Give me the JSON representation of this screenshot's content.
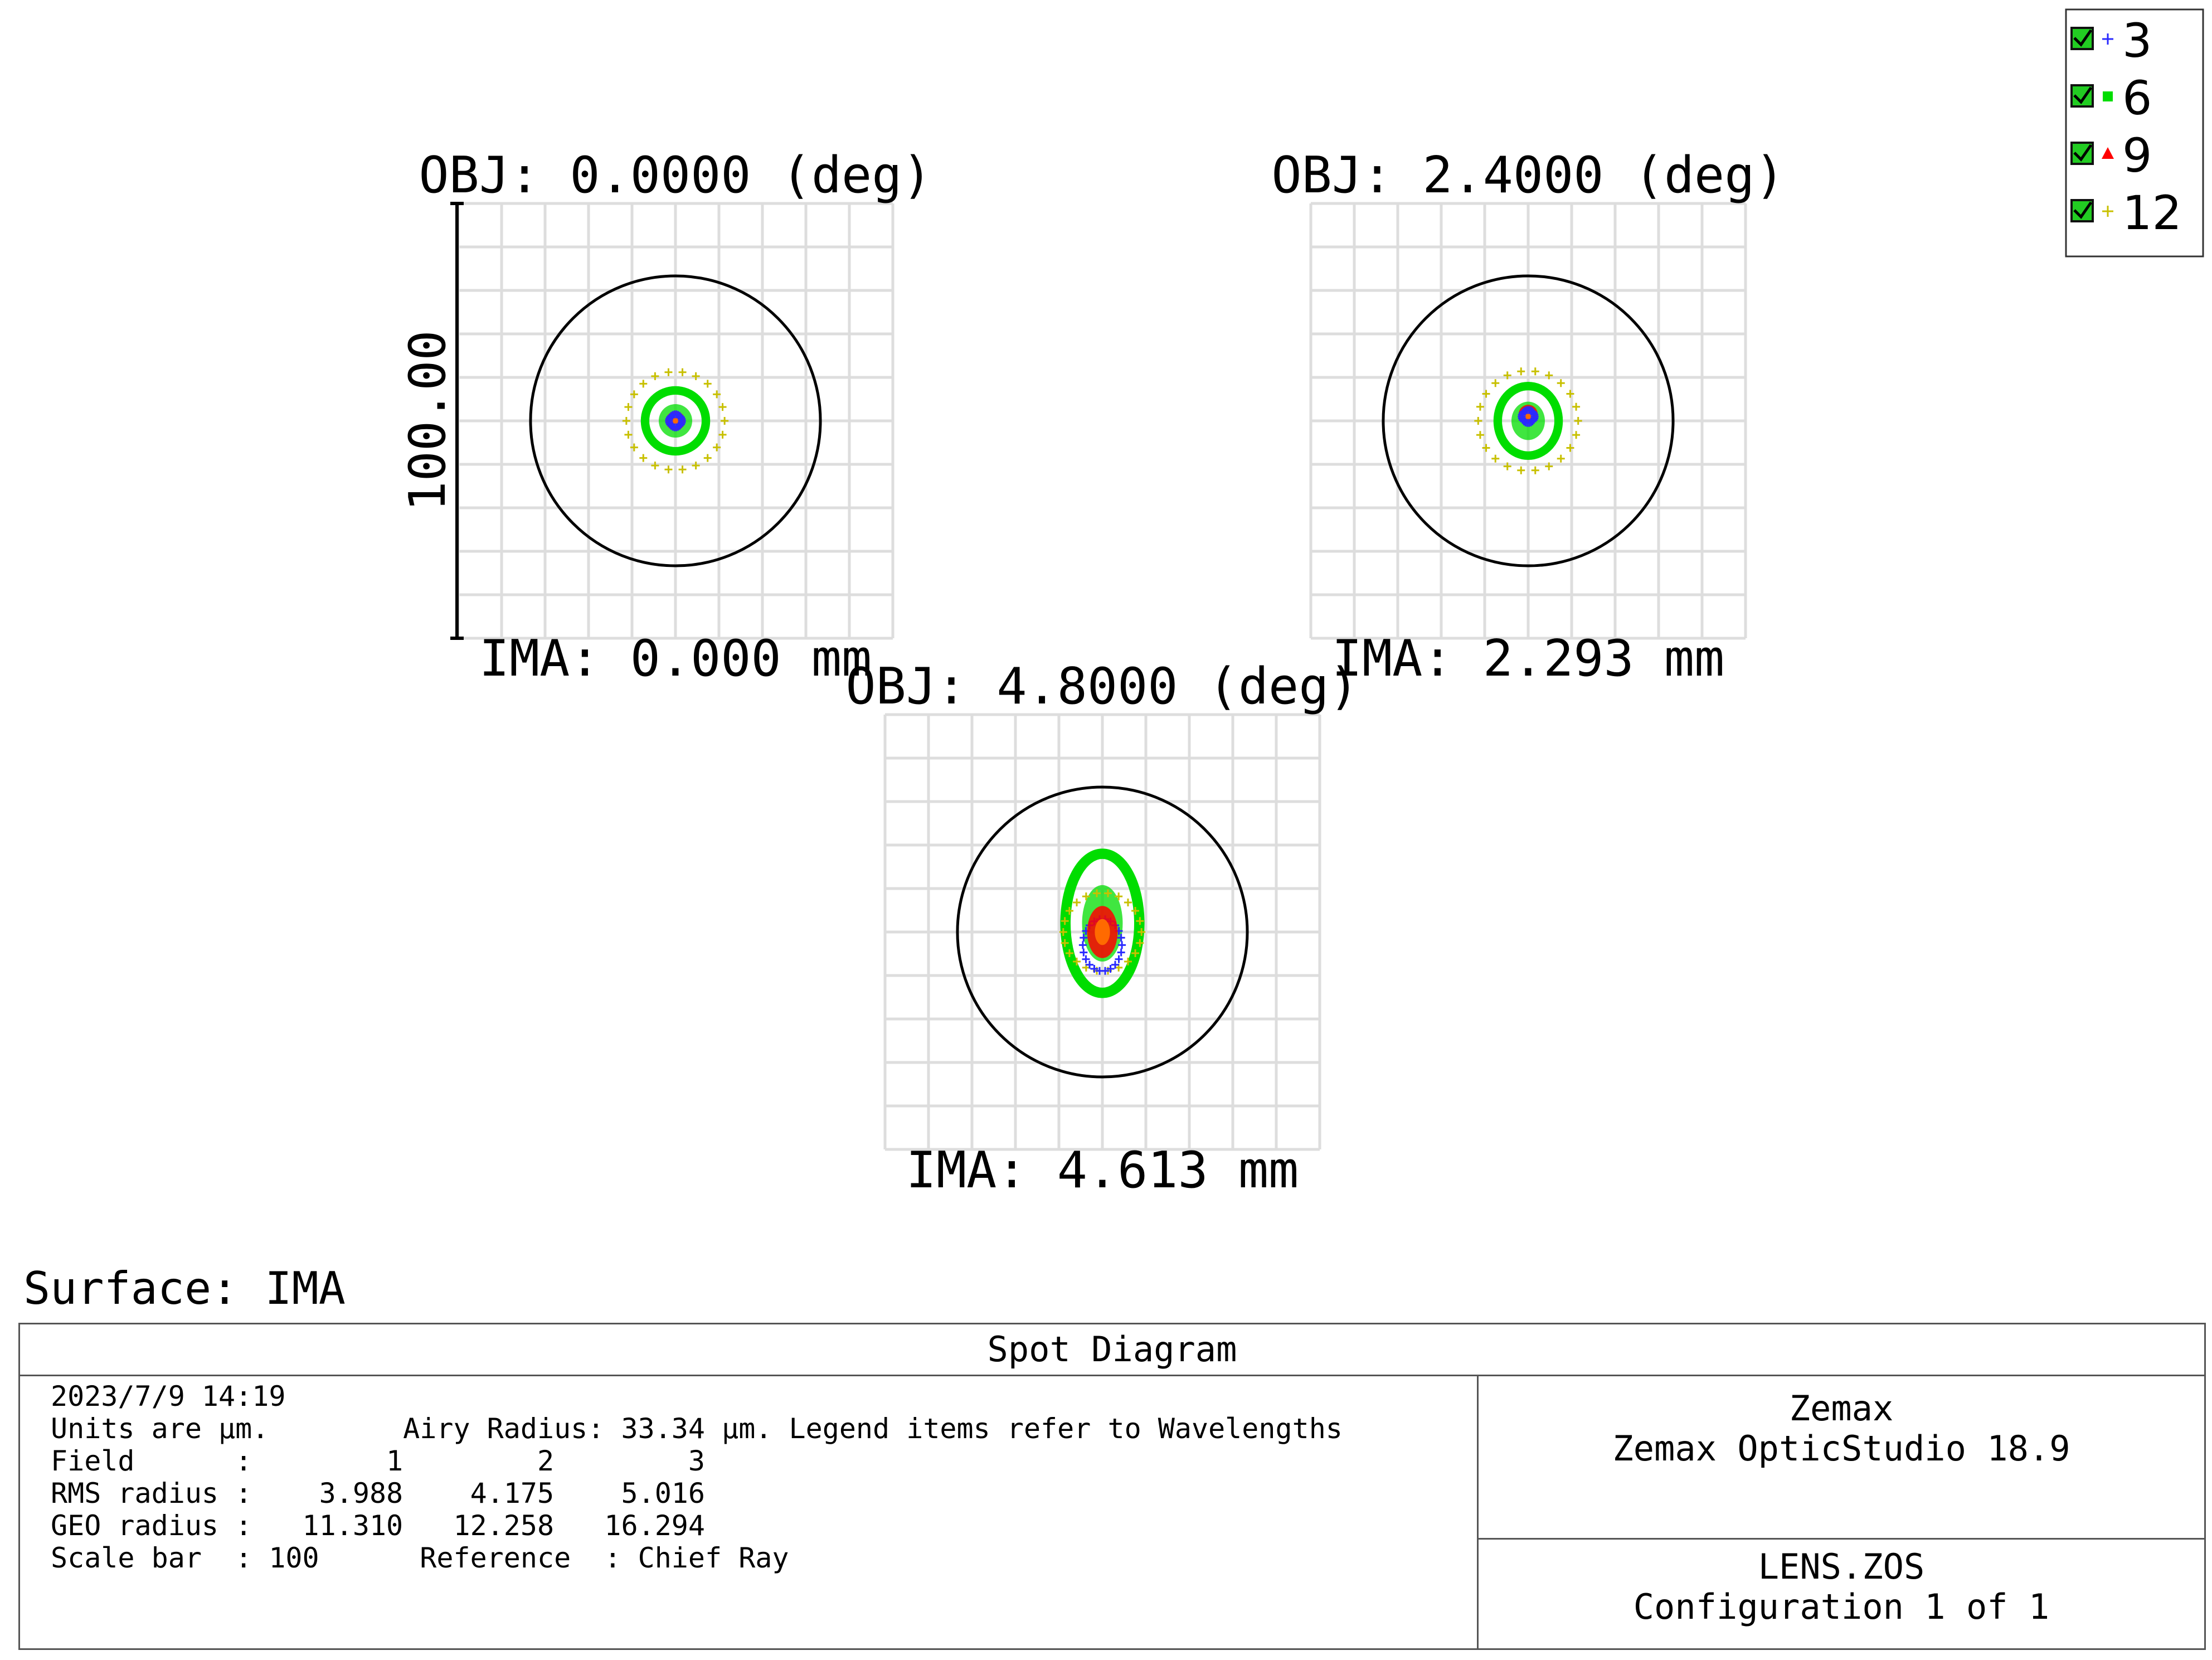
{
  "chart_data": {
    "type": "scatter",
    "title": "Spot Diagram",
    "units": "µm",
    "scale_bar_label": "100.00",
    "legend": {
      "placement": "top-right",
      "items": [
        {
          "label": "3",
          "marker": "plus",
          "color": "#2a2aff",
          "checked": true
        },
        {
          "label": "6",
          "marker": "square",
          "color": "#00dd00",
          "checked": true
        },
        {
          "label": "9",
          "marker": "triangle",
          "color": "#ff0000",
          "checked": true
        },
        {
          "label": "12",
          "marker": "plus",
          "color": "#c8c000",
          "checked": true
        }
      ]
    },
    "grid": true,
    "airy_radius": 33.34,
    "fields": [
      {
        "obj_label": "OBJ: 0.0000 (deg)",
        "ima_label": "IMA: 0.000 mm",
        "rms_radius": 3.988,
        "geo_radius": 11.31,
        "spots": [
          {
            "series": "12",
            "rx": 11.3,
            "ry": 11.3,
            "cx": 0,
            "cy": 0
          },
          {
            "series": "6",
            "rx": 7.0,
            "ry": 7.0,
            "cx": 0,
            "cy": 0
          },
          {
            "series": "9",
            "rx": 2.2,
            "ry": 2.2,
            "cx": 0,
            "cy": 0
          },
          {
            "series": "3",
            "rx": 1.5,
            "ry": 1.5,
            "cx": 0,
            "cy": 0
          }
        ]
      },
      {
        "obj_label": "OBJ: 2.4000 (deg)",
        "ima_label": "IMA: 2.293 mm",
        "rms_radius": 4.175,
        "geo_radius": 12.258,
        "spots": [
          {
            "series": "12",
            "rx": 11.5,
            "ry": 11.5,
            "cx": 0,
            "cy": 0
          },
          {
            "series": "6",
            "rx": 7.0,
            "ry": 8.0,
            "cx": 0,
            "cy": 0
          },
          {
            "series": "9",
            "rx": 2.2,
            "ry": 2.2,
            "cx": 0,
            "cy": -1.5
          },
          {
            "series": "3",
            "rx": 1.5,
            "ry": 1.5,
            "cx": 0,
            "cy": -1
          }
        ]
      },
      {
        "obj_label": "OBJ: 4.8000 (deg)",
        "ima_label": "IMA: 4.613 mm",
        "rms_radius": 5.016,
        "geo_radius": 16.294,
        "spots": [
          {
            "series": "6",
            "rx": 8.5,
            "ry": 16.0,
            "cx": 0,
            "cy": -2
          },
          {
            "series": "12",
            "rx": 9.0,
            "ry": 9.0,
            "cx": 0,
            "cy": 0
          },
          {
            "series": "3",
            "rx": 4.5,
            "ry": 6.0,
            "cx": 0,
            "cy": 3
          },
          {
            "series": "9",
            "rx": 3.5,
            "ry": 6.0,
            "cx": 0,
            "cy": 0
          }
        ]
      }
    ]
  },
  "surface_label": "Surface: IMA",
  "info": {
    "title": "Spot Diagram",
    "date": "2023/7/9 14:19",
    "units_line": "Units are µm.        Airy Radius: 33.34 µm. Legend items refer to Wavelengths",
    "field_line": "Field      :        1        2        3",
    "rms_line": "RMS radius :    3.988    4.175    5.016",
    "geo_line": "GEO radius :   11.310   12.258   16.294",
    "scale_line": "Scale bar  : 100      Reference  : Chief Ray",
    "software_vendor": "Zemax",
    "software_name": "Zemax OpticStudio 18.9",
    "file_name": "LENS.ZOS",
    "configuration": "Configuration 1 of 1"
  }
}
